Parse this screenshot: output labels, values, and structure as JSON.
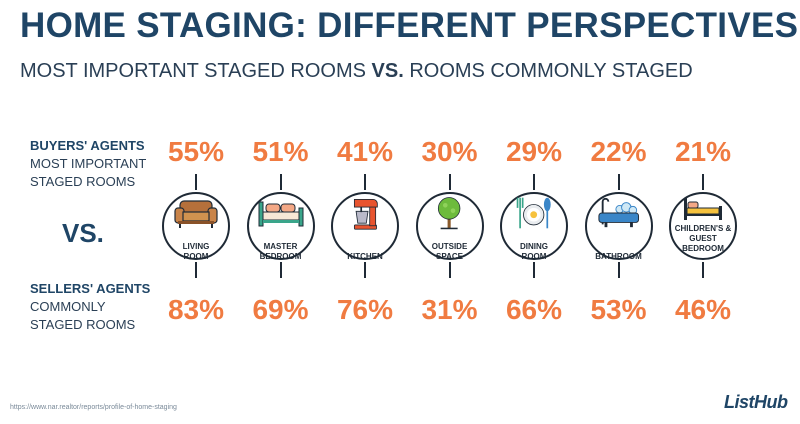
{
  "title": "HOME STAGING: DIFFERENT PERSPECTIVES",
  "subtitle": {
    "part1": "MOST IMPORTANT STAGED ROOMS ",
    "vs": "VS.",
    "part2": " ROOMS COMMONLY STAGED"
  },
  "buyers_label": {
    "line1": "BUYERS' AGENTS",
    "line2": "MOST IMPORTANT",
    "line3": "STAGED ROOMS"
  },
  "vs_label": "VS.",
  "sellers_label": {
    "line1": "SELLERS' AGENTS",
    "line2": "COMMONLY",
    "line3": "STAGED ROOMS"
  },
  "source": "https://www.nar.realtor/reports/profile-of-home-staging",
  "logo": "ListHub",
  "colors": {
    "accent": "#f07b41",
    "navy": "#1f4566",
    "green": "#3aa58a",
    "orange": "#e8542f"
  },
  "chart_data": {
    "type": "table",
    "rooms": [
      {
        "name_lines": [
          "LIVING",
          "ROOM"
        ],
        "icon": "sofa-icon",
        "buyers": "55%",
        "sellers": "83%"
      },
      {
        "name_lines": [
          "MASTER",
          "BEDROOM"
        ],
        "icon": "bed-icon",
        "buyers": "51%",
        "sellers": "69%"
      },
      {
        "name_lines": [
          "KITCHEN"
        ],
        "icon": "mixer-icon",
        "buyers": "41%",
        "sellers": "76%"
      },
      {
        "name_lines": [
          "OUTSIDE",
          "SPACE"
        ],
        "icon": "tree-icon",
        "buyers": "30%",
        "sellers": "31%"
      },
      {
        "name_lines": [
          "DINING",
          "ROOM"
        ],
        "icon": "plate-icon",
        "buyers": "29%",
        "sellers": "66%"
      },
      {
        "name_lines": [
          "BATHROOM"
        ],
        "icon": "bathtub-icon",
        "buyers": "22%",
        "sellers": "53%"
      },
      {
        "name_lines": [
          "CHILDREN'S &",
          "GUEST",
          "BEDROOM"
        ],
        "icon": "small-bed-icon",
        "buyers": "21%",
        "sellers": "46%"
      }
    ]
  }
}
